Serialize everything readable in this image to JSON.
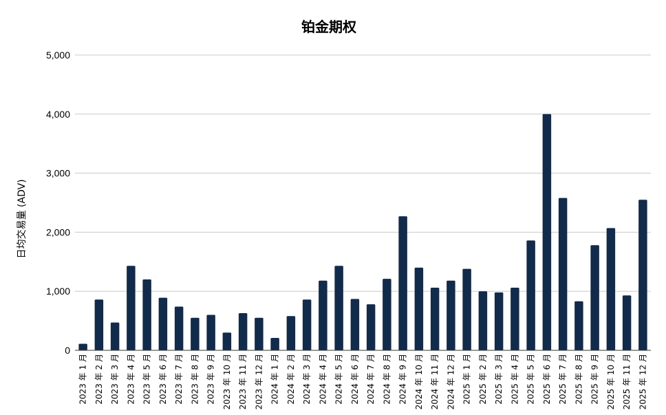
{
  "chart_data": {
    "type": "bar",
    "title": "铂金期权",
    "xlabel": "",
    "ylabel": "日均交易量 (ADV)",
    "ylim": [
      0,
      5000
    ],
    "yticks": [
      "0",
      "1,000",
      "2,000",
      "3,000",
      "4,000",
      "5,000"
    ],
    "ytick_values": [
      0,
      1000,
      2000,
      3000,
      4000,
      5000
    ],
    "grid": true,
    "bar_color": "#132b4a",
    "categories": [
      "2023 年 1 月",
      "2023 年 2 月",
      "2023 年 3 月",
      "2023 年 4 月",
      "2023 年 5 月",
      "2023 年 6 月",
      "2023 年 7 月",
      "2023 年 8 月",
      "2023 年 9 月",
      "2023 年 10 月",
      "2023 年 11 月",
      "2023 年 12 月",
      "2024 年 1 月",
      "2024 年 2 月",
      "2024 年 3 月",
      "2024 年 4 月",
      "2024 年 5 月",
      "2024 年 6 月",
      "2024 年 7 月",
      "2024 年 8 月",
      "2024 年 9 月",
      "2024 年 10 月",
      "2024 年 11 月",
      "2024 年 12 月",
      "2025 年 1 月",
      "2025 年 2 月",
      "2025 年 3 月",
      "2025 年 4 月",
      "2025 年 5 月",
      "2025 年 6 月",
      "2025 年 7 月",
      "2025 年 8 月",
      "2025 年 9 月",
      "2025 年 10 月",
      "2025 年 11 月",
      "2025 年 12 月"
    ],
    "values": [
      110,
      860,
      470,
      1430,
      1200,
      890,
      740,
      550,
      600,
      300,
      630,
      550,
      210,
      580,
      860,
      1180,
      1430,
      870,
      780,
      1210,
      2270,
      1400,
      1060,
      1180,
      1380,
      1000,
      980,
      1060,
      1860,
      4000,
      2580,
      830,
      1780,
      2070,
      930,
      2550
    ]
  }
}
